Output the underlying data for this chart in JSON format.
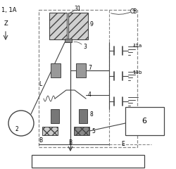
{
  "lc": "#444444",
  "lc2": "#888888",
  "fig_w": 2.5,
  "fig_h": 2.4,
  "dpi": 100,
  "title": "1, 1A",
  "label_Z": "Z",
  "label_L": "L",
  "label_2": "2",
  "label_3": "3",
  "label_4": "4",
  "label_5": "5",
  "label_6": "6",
  "label_7": "7",
  "label_8": "8",
  "label_9": "9",
  "label_31": "31",
  "label_11a": "11a",
  "label_11b": "11b",
  "label_CB": "CB",
  "label_B1": "B",
  "label_B2": "B",
  "label_E": "E"
}
